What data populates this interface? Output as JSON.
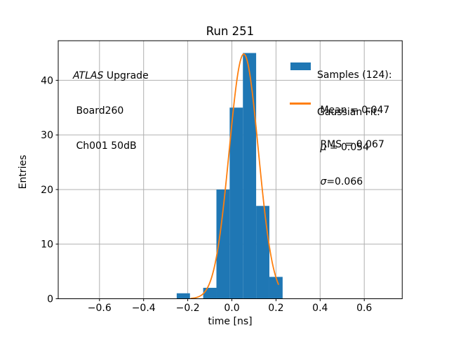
{
  "annotation": {
    "line1_italic": "ATLAS",
    "line1_rest": " Upgrade",
    "line2": " Board260",
    "line3": " Ch001 50dB"
  },
  "legend": {
    "samples": {
      "line1": "Samples (124):",
      "line2": " Mean = 0.047",
      "line3": " RMS = 0.067",
      "swatch_color": "#1f77b4"
    },
    "gaussian": {
      "line1": "Gaussian Fit:",
      "mu_prefix": " ",
      "mu_symbol": "μ",
      "mu_rest": " = 0.054",
      "sigma_prefix": " ",
      "sigma_symbol": "σ",
      "sigma_rest": "=0.066",
      "swatch_color": "#ff7f0e"
    }
  },
  "chart_data": {
    "type": "bar",
    "subtype": "histogram",
    "title": "Run 251",
    "xlabel": "time [ns]",
    "ylabel": "Entries",
    "xlim": [
      -0.787,
      0.772
    ],
    "ylim": [
      0,
      47.25
    ],
    "xticks": [
      -0.6,
      -0.4,
      -0.2,
      0.0,
      0.2,
      0.4,
      0.6
    ],
    "xtick_labels": [
      "−0.6",
      "−0.4",
      "−0.2",
      "0.0",
      "0.2",
      "0.4",
      "0.6"
    ],
    "yticks": [
      0,
      10,
      20,
      30,
      40
    ],
    "ytick_labels": [
      "0",
      "10",
      "20",
      "30",
      "40"
    ],
    "grid": true,
    "grid_color": "#b0b0b0",
    "axes_color": "#000000",
    "bar_color": "#1f77b4",
    "bin_edges": [
      -0.25,
      -0.19,
      -0.13,
      -0.07,
      -0.01,
      0.05,
      0.11,
      0.17,
      0.23
    ],
    "counts": [
      1,
      0,
      2,
      20,
      35,
      45,
      17,
      4
    ],
    "n_samples": 124,
    "mean": 0.047,
    "rms": 0.067,
    "fit": {
      "type": "gaussian",
      "mu": 0.054,
      "sigma": 0.066,
      "amplitude": 44.8,
      "x_range": [
        -0.185,
        0.211
      ],
      "color": "#ff7f0e",
      "line_width": 1.8
    },
    "legend_position": "upper right",
    "legend_frame": false
  }
}
